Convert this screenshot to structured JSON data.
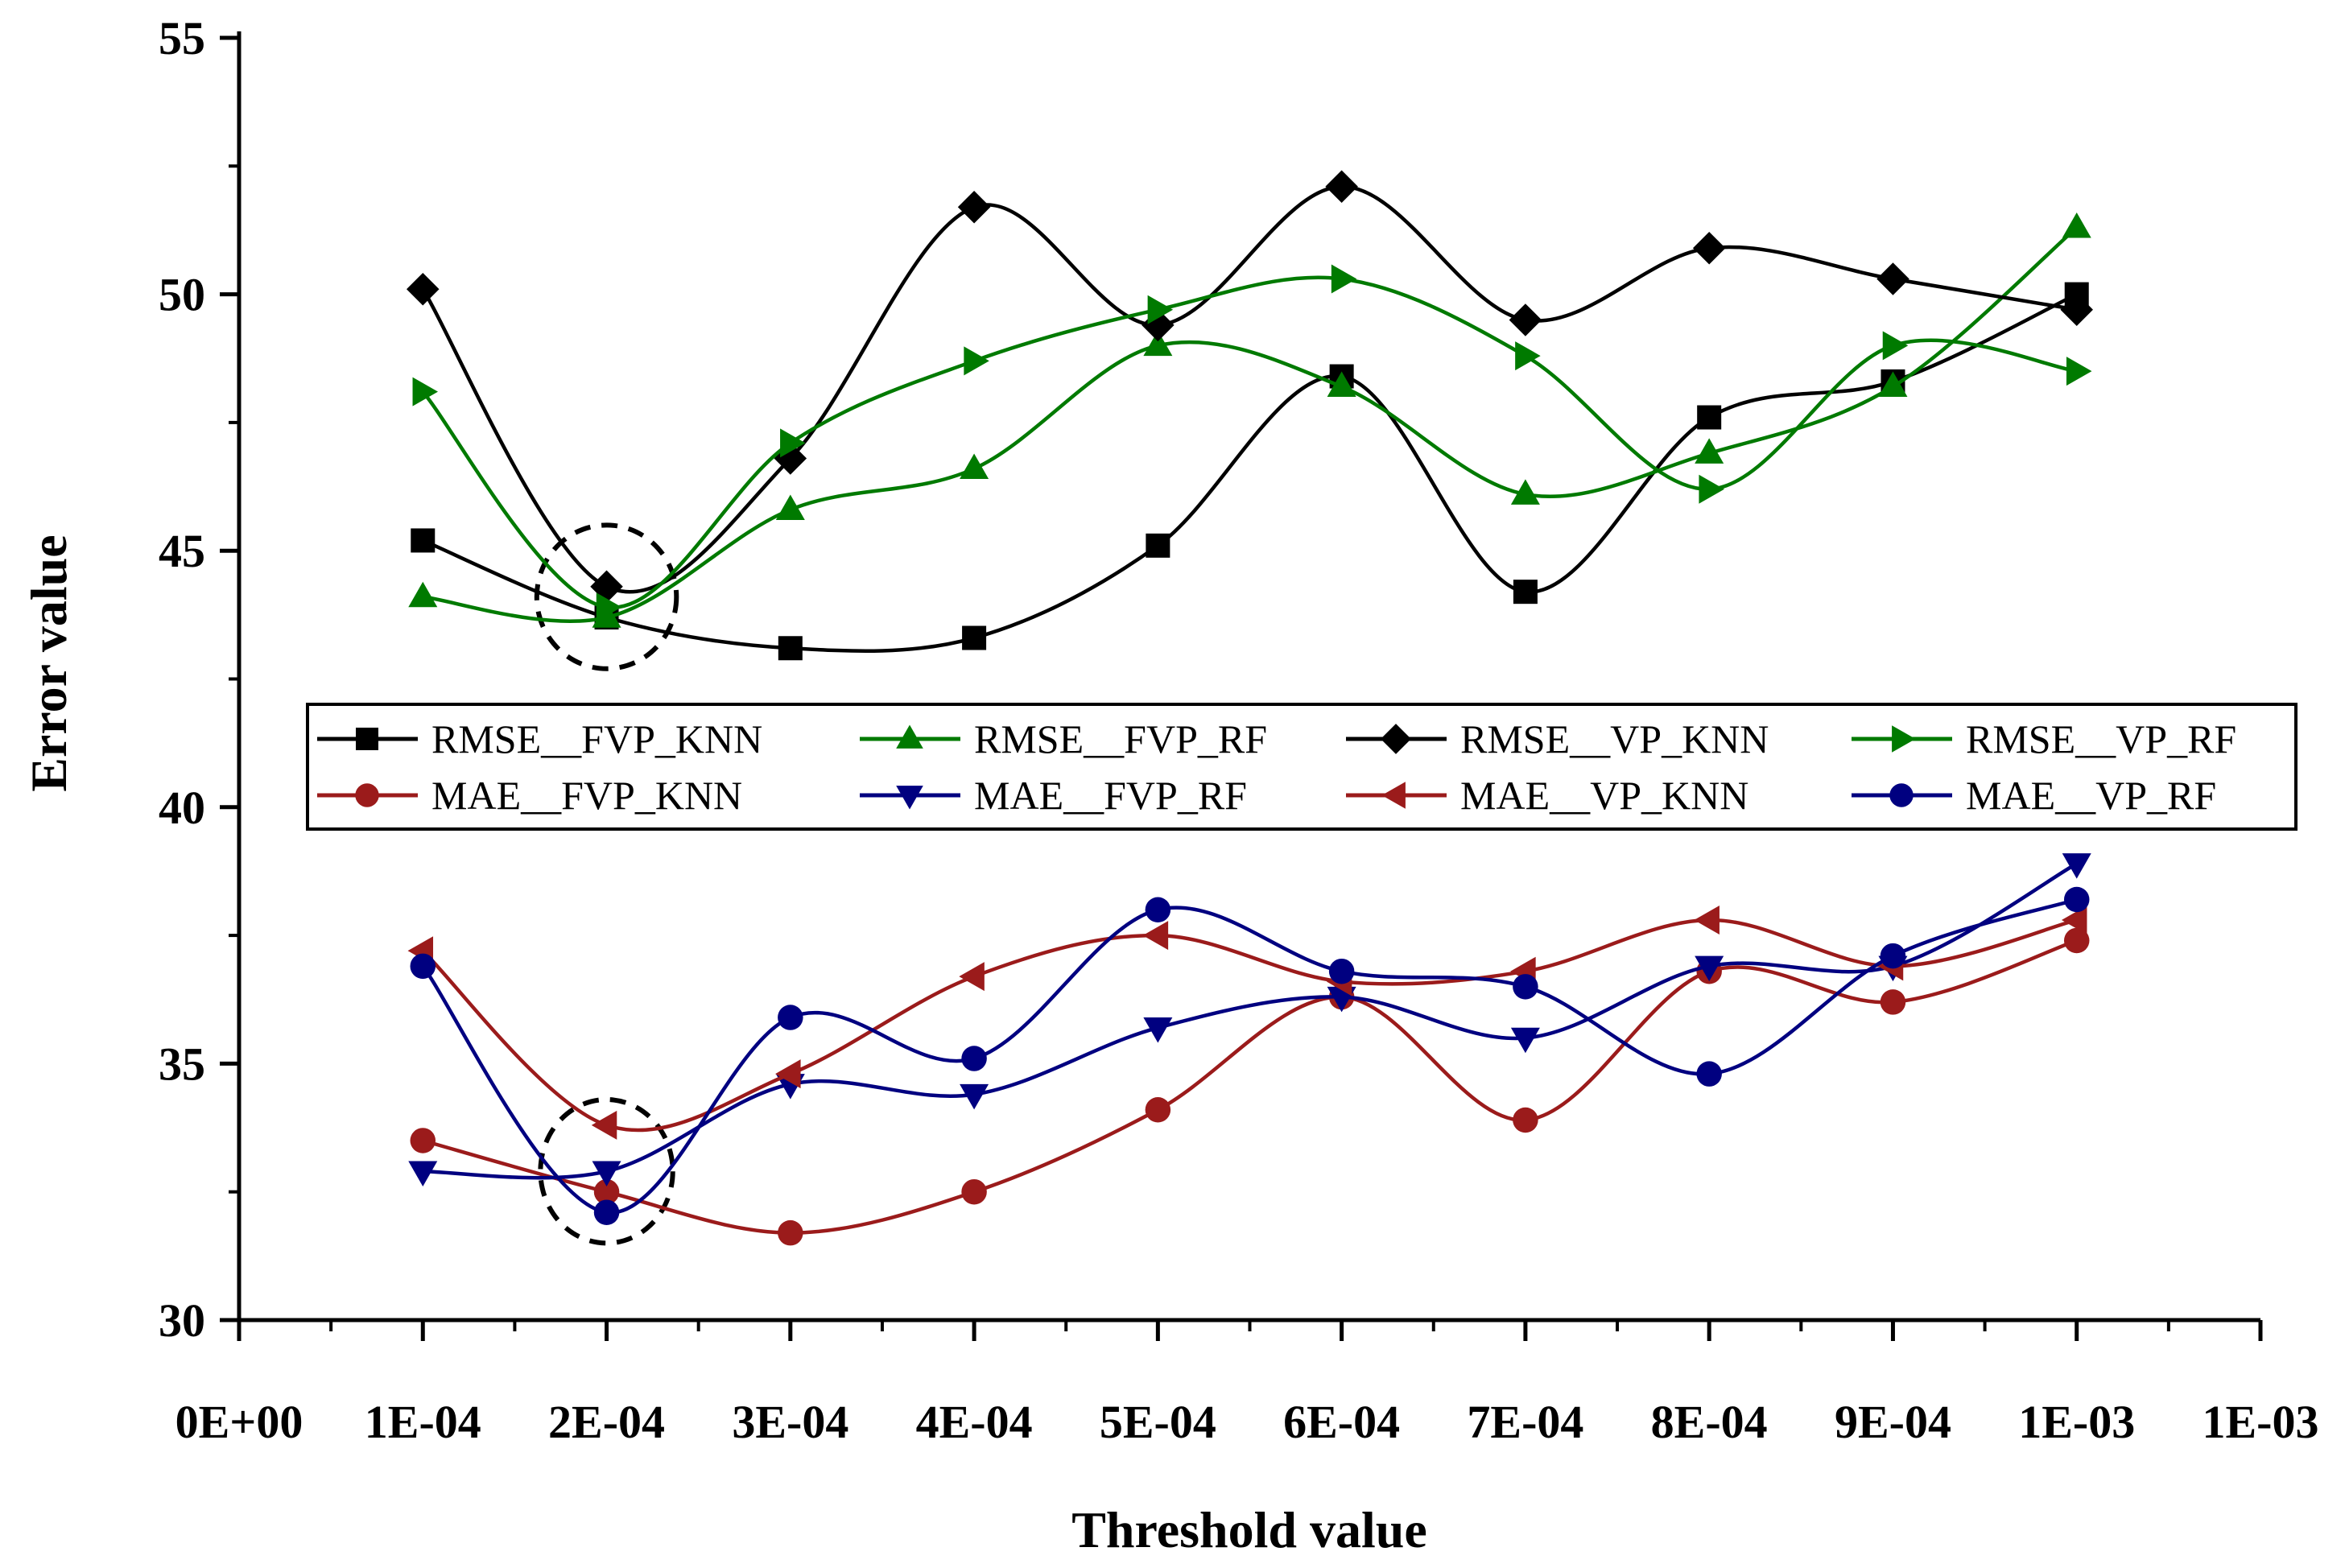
{
  "chart_data": {
    "type": "line",
    "title": "",
    "xlabel": "Threshold value",
    "ylabel": "Error value",
    "xlim": [
      0,
      0.0011
    ],
    "ylim": [
      30,
      55
    ],
    "x_ticks": [
      {
        "value": 0.0,
        "label": "0E+00"
      },
      {
        "value": 0.0001,
        "label": "1E-04"
      },
      {
        "value": 0.0002,
        "label": "2E-04"
      },
      {
        "value": 0.0003,
        "label": "3E-04"
      },
      {
        "value": 0.0004,
        "label": "4E-04"
      },
      {
        "value": 0.0005,
        "label": "5E-04"
      },
      {
        "value": 0.0006,
        "label": "6E-04"
      },
      {
        "value": 0.0007,
        "label": "7E-04"
      },
      {
        "value": 0.0008,
        "label": "8E-04"
      },
      {
        "value": 0.0009,
        "label": "9E-04"
      },
      {
        "value": 0.001,
        "label": "1E-03"
      },
      {
        "value": 0.0011,
        "label": "1E-03"
      }
    ],
    "y_ticks": [
      {
        "value": 30,
        "label": "30"
      },
      {
        "value": 35,
        "label": "35"
      },
      {
        "value": 40,
        "label": "40"
      },
      {
        "value": 45,
        "label": "45"
      },
      {
        "value": 50,
        "label": "50"
      },
      {
        "value": 55,
        "label": "55"
      }
    ],
    "x": [
      0.0001,
      0.0002,
      0.0003,
      0.0004,
      0.0005,
      0.0006,
      0.0007,
      0.0008,
      0.0009,
      0.001
    ],
    "series": [
      {
        "name": "RMSE__FVP_KNN",
        "color": "#000000",
        "marker": "square",
        "values": [
          45.2,
          43.7,
          43.1,
          43.3,
          45.1,
          48.4,
          44.2,
          47.6,
          48.3,
          50.0
        ]
      },
      {
        "name": "RMSE__FVP_RF",
        "color": "#007a00",
        "marker": "triangle-up",
        "values": [
          44.1,
          43.7,
          45.8,
          46.6,
          49.0,
          48.2,
          46.1,
          46.9,
          48.2,
          51.3
        ]
      },
      {
        "name": "RMSE__VP_KNN",
        "color": "#000000",
        "marker": "diamond",
        "values": [
          50.1,
          44.3,
          46.8,
          51.7,
          49.4,
          52.1,
          49.5,
          50.9,
          50.3,
          49.7
        ]
      },
      {
        "name": "RMSE__VP_RF",
        "color": "#007a00",
        "marker": "triangle-right",
        "values": [
          48.1,
          43.9,
          47.1,
          48.7,
          49.7,
          50.3,
          48.8,
          46.2,
          49.0,
          48.5
        ]
      },
      {
        "name": "MAE__FVP_KNN",
        "color": "#9b1b1b",
        "marker": "circle",
        "values": [
          33.5,
          32.5,
          31.7,
          32.5,
          34.1,
          36.3,
          33.9,
          36.8,
          36.2,
          37.4
        ]
      },
      {
        "name": "MAE__FVP_RF",
        "color": "#000080",
        "marker": "triangle-down",
        "values": [
          32.9,
          32.9,
          34.6,
          34.4,
          35.7,
          36.3,
          35.5,
          36.9,
          36.9,
          38.9
        ]
      },
      {
        "name": "MAE__VP_KNN",
        "color": "#9b1b1b",
        "marker": "triangle-left",
        "values": [
          37.2,
          33.8,
          34.8,
          36.7,
          37.5,
          36.6,
          36.8,
          37.8,
          36.9,
          37.8
        ]
      },
      {
        "name": "MAE__VP_RF",
        "color": "#000080",
        "marker": "circle",
        "values": [
          36.9,
          32.1,
          35.9,
          35.1,
          38.0,
          36.8,
          36.5,
          34.8,
          37.1,
          38.2
        ]
      }
    ],
    "annotations": [
      {
        "type": "dashed-ellipse",
        "x": 0.0002,
        "y": 44.1,
        "rx": 3.8e-05,
        "ry": 1.4
      },
      {
        "type": "dashed-ellipse",
        "x": 0.0002,
        "y": 32.9,
        "rx": 3.6e-05,
        "ry": 1.4
      }
    ],
    "grid": false,
    "legend_position": "center, between the upper and lower groups, two rows of four entries"
  }
}
